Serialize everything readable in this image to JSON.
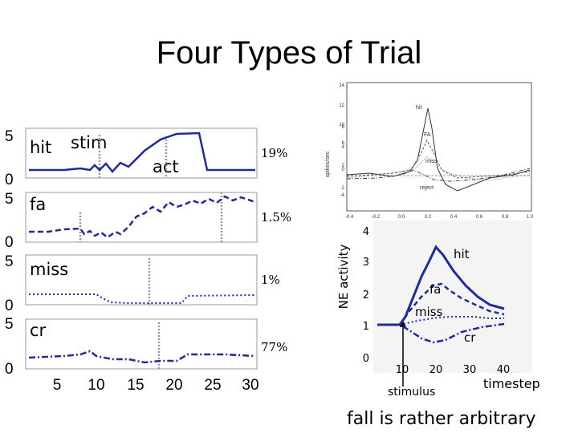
{
  "title": "Four Types of Trial",
  "caption": "fall is rather arbitrary",
  "left_panels": {
    "yticks": [
      "0",
      "5"
    ],
    "xticks": [
      "5",
      "10",
      "15",
      "20",
      "25",
      "30"
    ],
    "panels": [
      {
        "label": "hit",
        "extra_labels": [
          "stim",
          "act"
        ],
        "percent": "19%"
      },
      {
        "label": "fa",
        "percent": "1.5%"
      },
      {
        "label": "miss",
        "percent": "1%"
      },
      {
        "label": "cr",
        "percent": "77%"
      }
    ]
  },
  "top_right_plot": {
    "ylabel": "spikes/sec",
    "yticks": [
      "-4",
      "-2",
      "0",
      "2",
      "4",
      "6",
      "8",
      "10",
      "12",
      "14"
    ],
    "xticks": [
      "-0.4",
      "-0.2",
      "0.0",
      "0.2",
      "0.4",
      "0.6",
      "0.8",
      "1.0"
    ],
    "curve_labels": [
      "hit",
      "FA",
      "miss",
      "reject"
    ]
  },
  "ne_plot": {
    "ylabel": "NE activity",
    "xlabel": "timestep",
    "stimulus_label": "stimulus",
    "yticks": [
      "0",
      "1",
      "2",
      "3",
      "4"
    ],
    "xticks": [
      "10",
      "20",
      "30",
      "40"
    ],
    "curve_labels": [
      "hit",
      "fa",
      "miss",
      "cr"
    ]
  },
  "colors": {
    "series": "#1f2a9c",
    "dotted": "#888888"
  }
}
